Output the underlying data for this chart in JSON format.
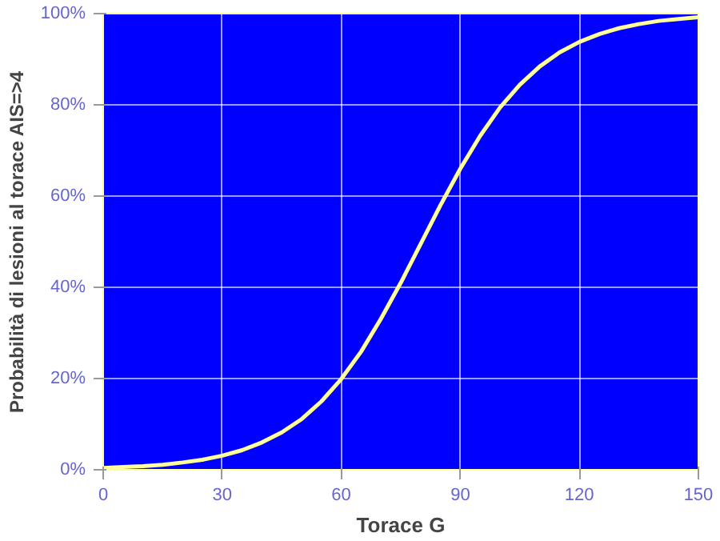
{
  "chart_data": {
    "type": "line",
    "xlabel": "Torace G",
    "ylabel": "Probabilità di lesioni al torace AIS=>4",
    "x": [
      0,
      5,
      10,
      15,
      20,
      25,
      30,
      35,
      40,
      45,
      50,
      55,
      60,
      65,
      70,
      75,
      80,
      85,
      90,
      95,
      100,
      105,
      110,
      115,
      120,
      125,
      130,
      135,
      140,
      145,
      150
    ],
    "series": [
      {
        "color": "#ffff99",
        "values": [
          0.4,
          0.6,
          0.8,
          1.1,
          1.6,
          2.2,
          3.1,
          4.3,
          6.0,
          8.2,
          11.1,
          15.0,
          19.9,
          25.9,
          33.1,
          41.0,
          49.5,
          58.0,
          66.0,
          73.2,
          79.4,
          84.4,
          88.4,
          91.5,
          93.8,
          95.5,
          96.8,
          97.7,
          98.4,
          98.8,
          99.2
        ]
      }
    ],
    "xlim": [
      0,
      150
    ],
    "xticks": [
      0,
      30,
      60,
      90,
      120,
      150
    ],
    "ylim": [
      0,
      100
    ],
    "yticks": [
      {
        "value": 0,
        "label": "0%"
      },
      {
        "value": 20,
        "label": "20%"
      },
      {
        "value": 40,
        "label": "40%"
      },
      {
        "value": 60,
        "label": "60%"
      },
      {
        "value": 80,
        "label": "80%"
      },
      {
        "value": 100,
        "label": "100%"
      }
    ],
    "grid": true,
    "marker": "none",
    "line_style": "solid"
  }
}
